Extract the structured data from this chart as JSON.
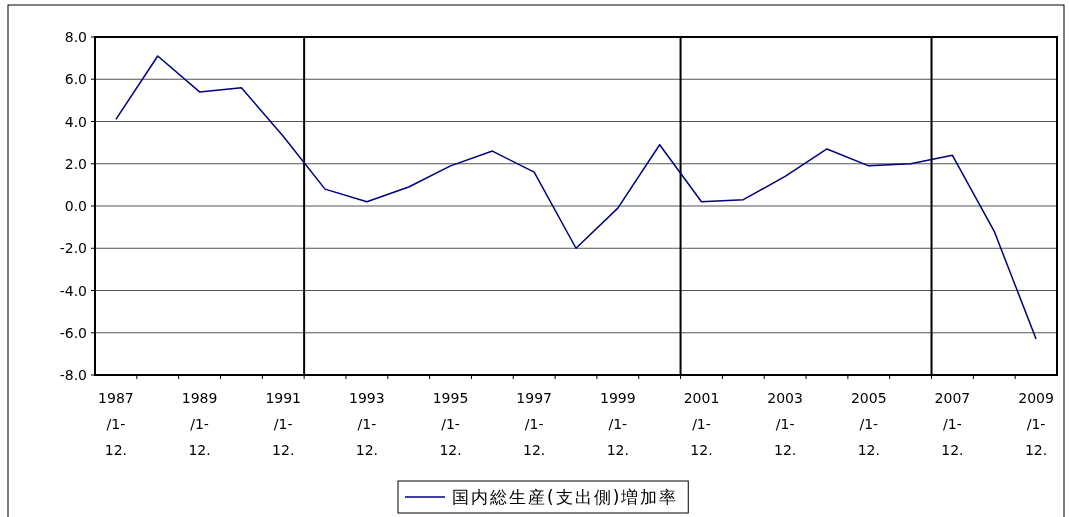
{
  "chart_data": {
    "type": "line",
    "categories": [
      "1987\n/1-\n12.",
      null,
      "1989\n/1-\n12.",
      null,
      "1991\n/1-\n12.",
      null,
      "1993\n/1-\n12.",
      null,
      "1995\n/1-\n12.",
      null,
      "1997\n/1-\n12.",
      null,
      "1999\n/1-\n12.",
      null,
      "2001\n/1-\n12.",
      null,
      "2003\n/1-\n12.",
      null,
      "2005\n/1-\n12.",
      null,
      "2007\n/1-\n12.",
      null,
      "2009\n/1-\n12."
    ],
    "series": [
      {
        "name": "国内総生産(支出側)増加率",
        "color": "#000080",
        "values": [
          4.1,
          7.1,
          5.4,
          5.6,
          3.3,
          0.8,
          0.2,
          0.9,
          1.9,
          2.6,
          1.6,
          -2.0,
          -0.1,
          2.9,
          0.2,
          0.3,
          1.4,
          2.7,
          1.9,
          2.0,
          2.4,
          -1.2,
          -6.3
        ]
      }
    ],
    "ylim": [
      -8,
      8
    ],
    "yticks": [
      {
        "value": -8,
        "label": "-8.0"
      },
      {
        "value": -6,
        "label": "-6.0"
      },
      {
        "value": -4,
        "label": "-4.0"
      },
      {
        "value": -2,
        "label": "-2.0"
      },
      {
        "value": 0,
        "label": "0.0"
      },
      {
        "value": 2,
        "label": "2.0"
      },
      {
        "value": 4,
        "label": "4.0"
      },
      {
        "value": 6,
        "label": "6.0"
      },
      {
        "value": 8,
        "label": "8.0"
      }
    ],
    "grid": "y",
    "legend": "bottom",
    "marker": "none",
    "line_style": "solid"
  }
}
